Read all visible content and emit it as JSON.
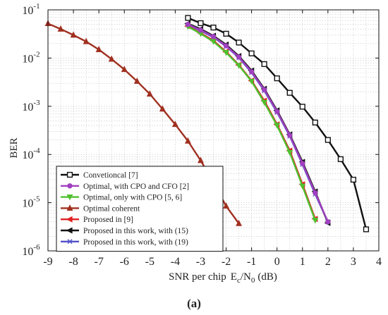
{
  "chart_data": {
    "type": "line",
    "ylabel": "BER",
    "xlabel_main": "SNR per chip",
    "xlabel_e": "E",
    "xlabel_e_sub": "c",
    "xlabel_slash": "/N",
    "xlabel_n_sub": "0",
    "xlabel_unit": "(dB)",
    "caption_open": "(",
    "caption_letter": "a",
    "caption_close": ")",
    "y_scale": "log",
    "xlim": [
      -9,
      4
    ],
    "ylim": [
      1e-06,
      0.1
    ],
    "grid": true,
    "legend_position": "bottom-left",
    "x_ticks": [
      "-9",
      "-8",
      "-7",
      "-6",
      "-5",
      "-4",
      "-3",
      "-2",
      "-1",
      "0",
      "1",
      "2",
      "3",
      "4"
    ],
    "y_ticks": [
      {
        "base": "10",
        "exp": "-6"
      },
      {
        "base": "10",
        "exp": "-5"
      },
      {
        "base": "10",
        "exp": "-4"
      },
      {
        "base": "10",
        "exp": "-3"
      },
      {
        "base": "10",
        "exp": "-2"
      },
      {
        "base": "10",
        "exp": "-1"
      }
    ],
    "series": [
      {
        "name": "Convetioncal [7]",
        "color": "#111111",
        "marker": "square",
        "x": [
          -3.5,
          -3,
          -2.5,
          -2,
          -1.5,
          -1,
          -0.5,
          0,
          0.5,
          1,
          1.5,
          2,
          2.5,
          3,
          3.5
        ],
        "y": [
          0.068,
          0.053,
          0.043,
          0.032,
          0.021,
          0.0125,
          0.0075,
          0.0038,
          0.0019,
          0.00098,
          0.00046,
          0.0002,
          8e-05,
          3e-05,
          2.8e-06
        ]
      },
      {
        "name": "Optimal, with CPO and CFO [2]",
        "color": "#a040c0",
        "marker": "circle",
        "x": [
          -3.5,
          -3,
          -2.5,
          -2,
          -1.5,
          -1,
          -0.5,
          0,
          0.5,
          1,
          1.5,
          2
        ],
        "y": [
          0.05,
          0.038,
          0.028,
          0.018,
          0.0105,
          0.0052,
          0.0022,
          0.00078,
          0.00025,
          6.5e-05,
          1.6e-05,
          4e-06
        ]
      },
      {
        "name": "Optimal, only with CPO [5, 6]",
        "color": "#50c030",
        "marker": "triangle-down",
        "x": [
          -3.5,
          -3,
          -2.5,
          -2,
          -1.5,
          -1,
          -0.5,
          0,
          0.5,
          1,
          1.5
        ],
        "y": [
          0.045,
          0.032,
          0.022,
          0.013,
          0.007,
          0.0033,
          0.0012,
          0.0004,
          0.00011,
          2.2e-05,
          4.3e-06
        ]
      },
      {
        "name": "Optimal coherent",
        "color": "#a03020",
        "marker": "triangle-up",
        "x": [
          -9,
          -8.5,
          -8,
          -7.5,
          -7,
          -6.5,
          -6,
          -5.5,
          -5,
          -4.5,
          -4,
          -3.5,
          -3,
          -2.5,
          -2,
          -1.5
        ],
        "y": [
          0.052,
          0.04,
          0.03,
          0.022,
          0.015,
          0.0095,
          0.0058,
          0.0033,
          0.0018,
          0.00088,
          0.00042,
          0.00019,
          7.5e-05,
          2.6e-05,
          8.5e-06,
          3.7e-06
        ]
      },
      {
        "name": "Proposed in [9]",
        "color": "#e02020",
        "marker": "triangle-left",
        "x": [
          -3.5,
          -3,
          -2.5,
          -2,
          -1.5,
          -1,
          -0.5,
          0,
          0.5,
          1,
          1.5
        ],
        "y": [
          0.046,
          0.033,
          0.023,
          0.0135,
          0.0072,
          0.0034,
          0.0013,
          0.00042,
          0.00012,
          2.4e-05,
          4.6e-06
        ]
      },
      {
        "name": "Proposed in this work, with (15)",
        "color": "#111111",
        "marker": "triangle-left",
        "x": [
          -3.5,
          -3,
          -2.5,
          -2,
          -1.5,
          -1,
          -0.5,
          0,
          0.5,
          1,
          1.5,
          2
        ],
        "y": [
          0.052,
          0.04,
          0.029,
          0.019,
          0.011,
          0.0055,
          0.0023,
          0.00082,
          0.00026,
          7e-05,
          1.7e-05,
          3.8e-06
        ]
      },
      {
        "name": "Proposed in this work, with (19)",
        "color": "#5050c8",
        "marker": "x",
        "x": [
          -3.5,
          -3,
          -2.5,
          -2,
          -1.5,
          -1,
          -0.5,
          0,
          0.5,
          1,
          1.5,
          2
        ],
        "y": [
          0.049,
          0.037,
          0.027,
          0.0175,
          0.0102,
          0.005,
          0.0021,
          0.00075,
          0.00024,
          6.2e-05,
          1.5e-05,
          4e-06
        ]
      }
    ]
  }
}
